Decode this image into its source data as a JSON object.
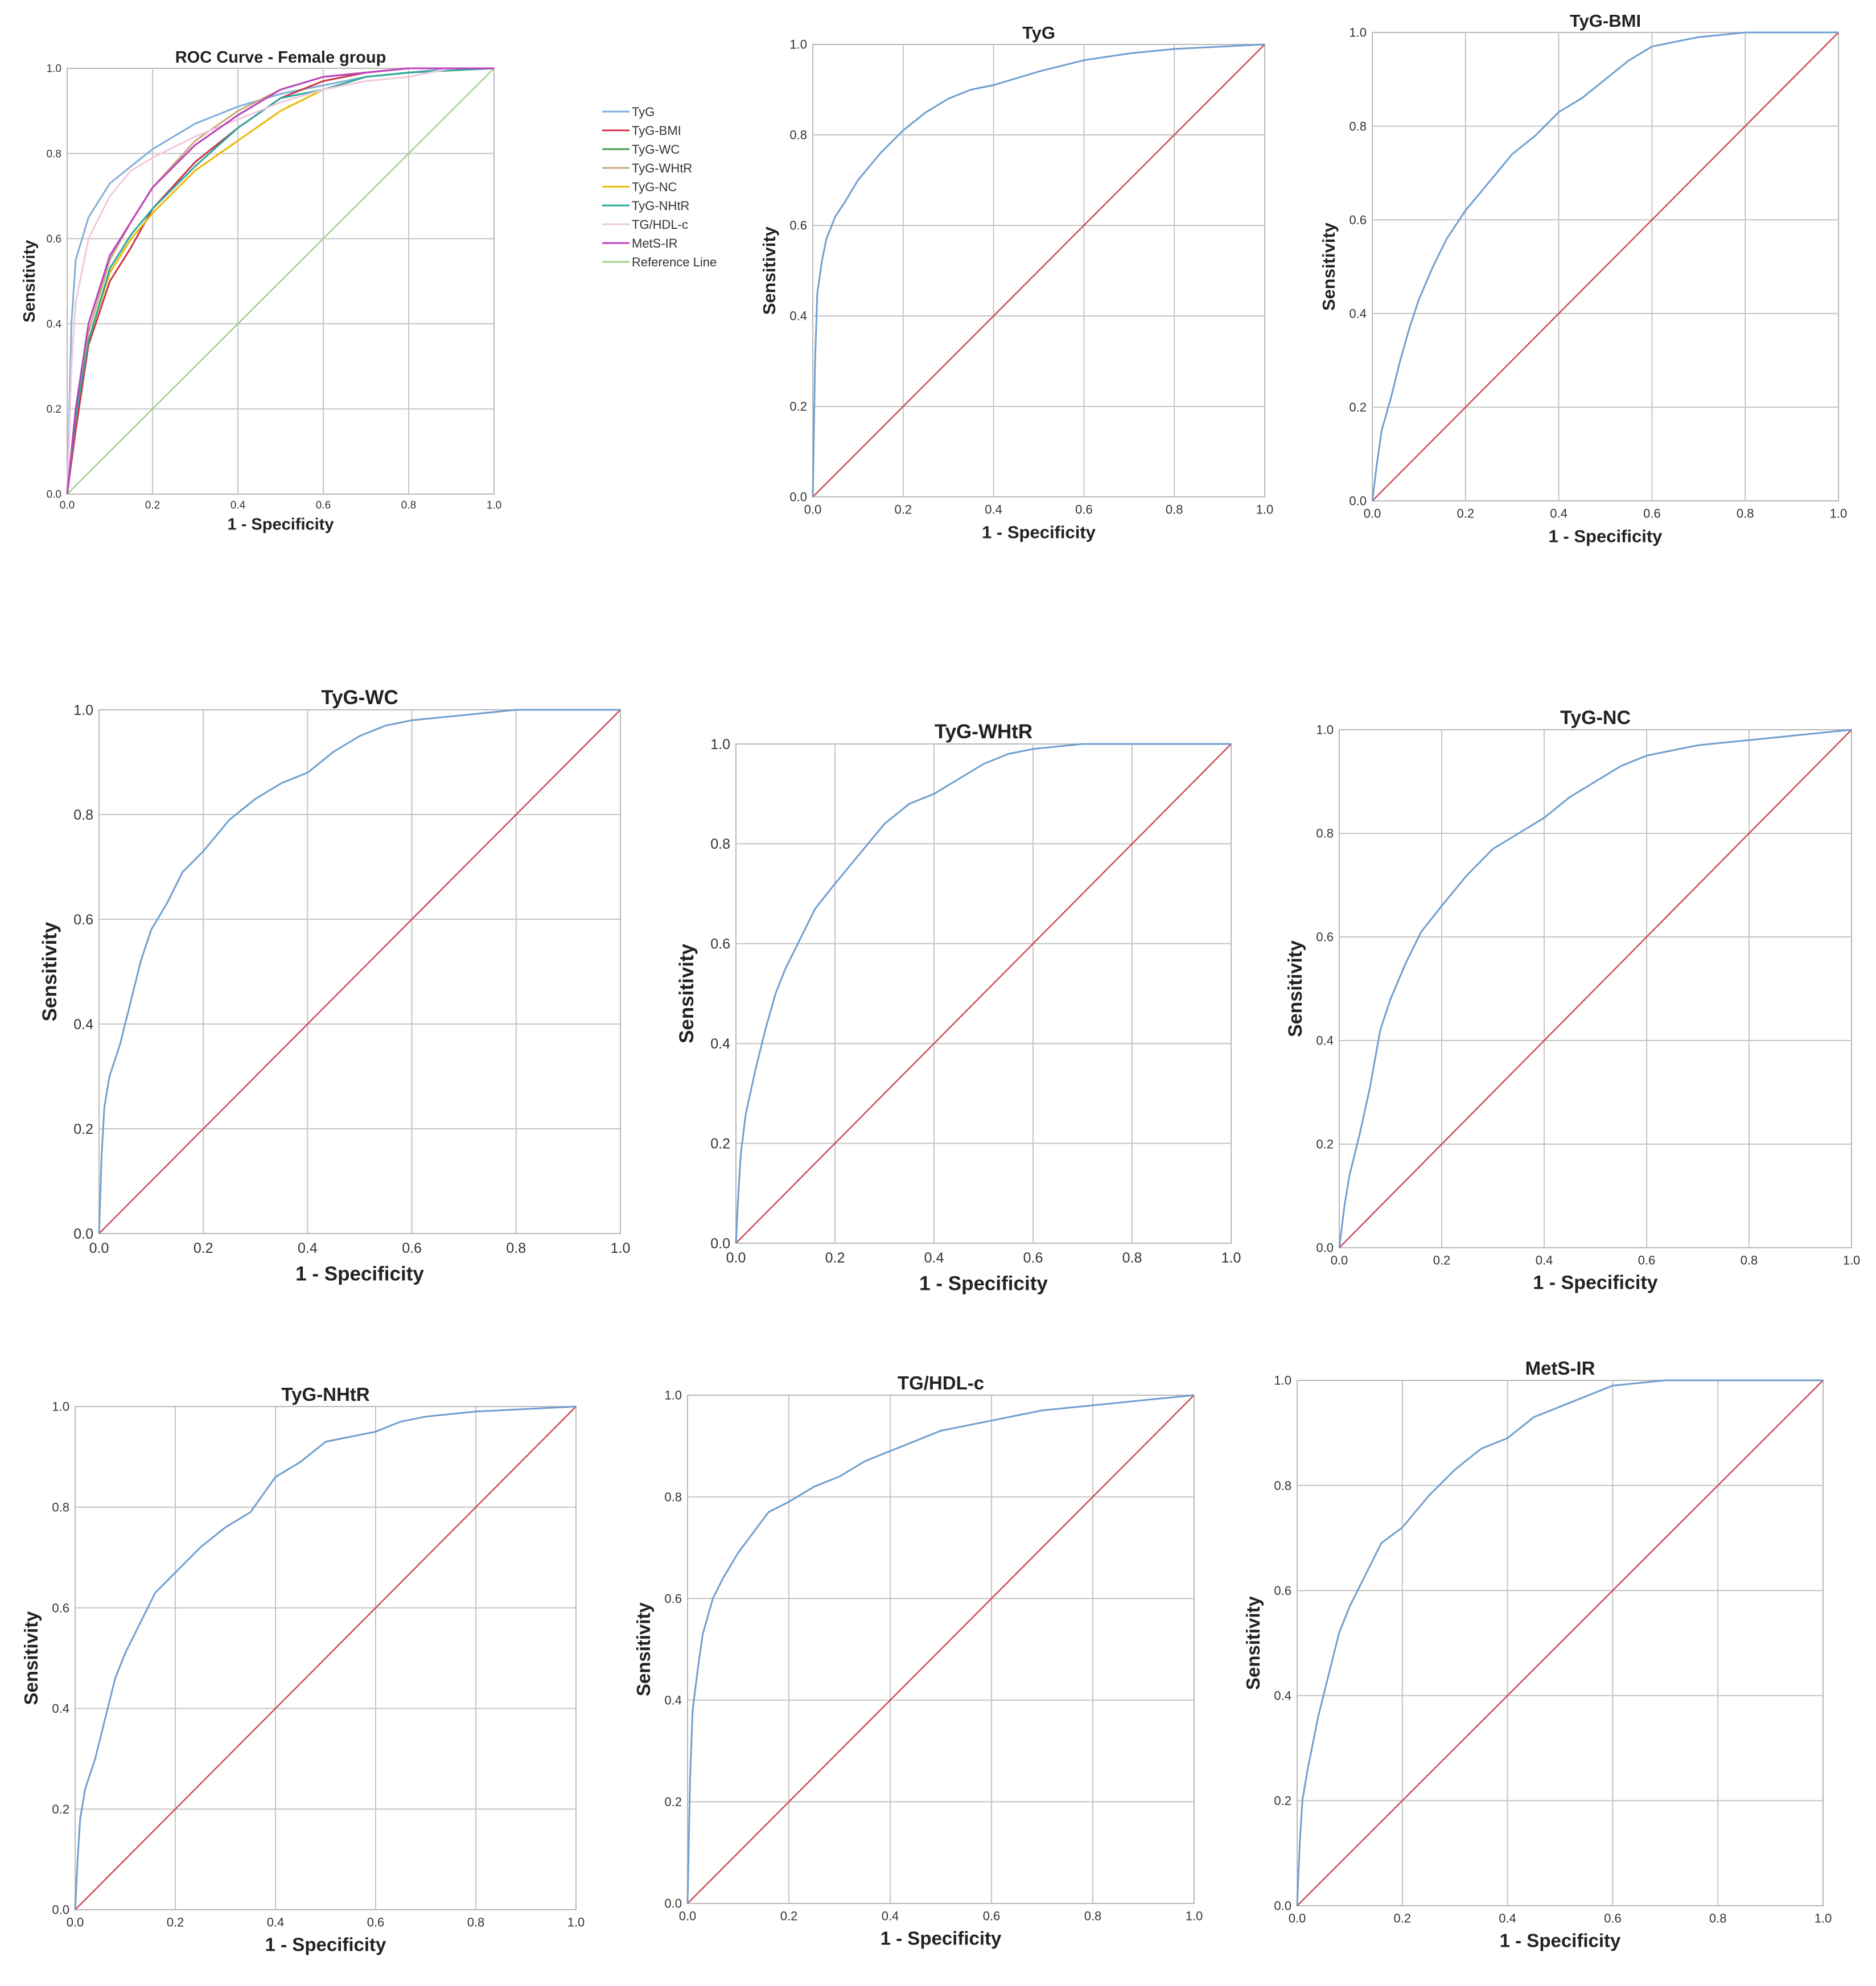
{
  "chart_data": [
    {
      "type": "line",
      "title": "ROC Curve - Female group",
      "xlabel": "1 - Specificity",
      "ylabel": "Sensitivity",
      "xlim": [
        0,
        1
      ],
      "ylim": [
        0,
        1
      ],
      "xticks": [
        "0.0",
        "0.2",
        "0.4",
        "0.6",
        "0.8",
        "1.0"
      ],
      "yticks": [
        "0.0",
        "0.2",
        "0.4",
        "0.6",
        "0.8",
        "1.0"
      ],
      "grid": true,
      "legend": "right",
      "series": [
        {
          "name": "TyG",
          "color": "#7faedb",
          "x": [
            0,
            0.01,
            0.02,
            0.05,
            0.1,
            0.15,
            0.2,
            0.3,
            0.4,
            0.5,
            0.6,
            0.7,
            0.8,
            0.9,
            1.0
          ],
          "y": [
            0,
            0.4,
            0.55,
            0.65,
            0.73,
            0.77,
            0.81,
            0.87,
            0.91,
            0.94,
            0.96,
            0.98,
            0.99,
            1.0,
            1.0
          ]
        },
        {
          "name": "TyG-BMI",
          "color": "#cc3344",
          "x": [
            0,
            0.02,
            0.05,
            0.1,
            0.15,
            0.2,
            0.3,
            0.4,
            0.5,
            0.6,
            0.7,
            0.8,
            1.0
          ],
          "y": [
            0,
            0.15,
            0.35,
            0.5,
            0.58,
            0.67,
            0.78,
            0.86,
            0.93,
            0.97,
            0.99,
            1.0,
            1.0
          ]
        },
        {
          "name": "TyG-WC",
          "color": "#4a9a48",
          "x": [
            0,
            0.02,
            0.05,
            0.1,
            0.15,
            0.2,
            0.3,
            0.4,
            0.5,
            0.6,
            0.7,
            0.8,
            1.0
          ],
          "y": [
            0,
            0.2,
            0.4,
            0.56,
            0.64,
            0.72,
            0.82,
            0.89,
            0.95,
            0.98,
            0.99,
            1.0,
            1.0
          ]
        },
        {
          "name": "TyG-WHtR",
          "color": "#c9a77a",
          "x": [
            0,
            0.02,
            0.05,
            0.1,
            0.15,
            0.2,
            0.3,
            0.4,
            0.5,
            0.6,
            0.7,
            0.8,
            1.0
          ],
          "y": [
            0,
            0.2,
            0.38,
            0.55,
            0.64,
            0.72,
            0.83,
            0.9,
            0.95,
            0.98,
            0.99,
            1.0,
            1.0
          ]
        },
        {
          "name": "TyG-NC",
          "color": "#e8b800",
          "x": [
            0,
            0.02,
            0.05,
            0.1,
            0.15,
            0.2,
            0.3,
            0.4,
            0.5,
            0.6,
            0.7,
            0.8,
            1.0
          ],
          "y": [
            0,
            0.18,
            0.36,
            0.52,
            0.6,
            0.66,
            0.76,
            0.83,
            0.9,
            0.95,
            0.98,
            0.99,
            1.0
          ]
        },
        {
          "name": "TyG-NHtR",
          "color": "#2ba7a0",
          "x": [
            0,
            0.02,
            0.05,
            0.1,
            0.15,
            0.2,
            0.3,
            0.4,
            0.5,
            0.6,
            0.7,
            0.8,
            1.0
          ],
          "y": [
            0,
            0.18,
            0.36,
            0.53,
            0.61,
            0.67,
            0.77,
            0.86,
            0.93,
            0.95,
            0.98,
            0.99,
            1.0
          ]
        },
        {
          "name": "TG/HDL-c",
          "color": "#f0c9dc",
          "x": [
            0,
            0.01,
            0.02,
            0.05,
            0.1,
            0.15,
            0.2,
            0.3,
            0.4,
            0.5,
            0.6,
            0.7,
            0.8,
            0.9,
            1.0
          ],
          "y": [
            0,
            0.3,
            0.45,
            0.6,
            0.7,
            0.76,
            0.79,
            0.84,
            0.88,
            0.92,
            0.95,
            0.97,
            0.98,
            1.0,
            1.0
          ]
        },
        {
          "name": "MetS-IR",
          "color": "#c040c0",
          "x": [
            0,
            0.02,
            0.05,
            0.1,
            0.15,
            0.2,
            0.3,
            0.4,
            0.5,
            0.6,
            0.7,
            0.8,
            1.0
          ],
          "y": [
            0,
            0.2,
            0.4,
            0.56,
            0.64,
            0.72,
            0.82,
            0.89,
            0.95,
            0.98,
            0.99,
            1.0,
            1.0
          ]
        },
        {
          "name": "Reference Line",
          "color": "#9fd38a",
          "x": [
            0,
            1
          ],
          "y": [
            0,
            1
          ]
        }
      ]
    },
    {
      "type": "line",
      "title": "TyG",
      "xlabel": "1 - Specificity",
      "ylabel": "Sensitivity",
      "xlim": [
        0,
        1
      ],
      "ylim": [
        0,
        1
      ],
      "xticks": [
        "0.0",
        "0.2",
        "0.4",
        "0.6",
        "0.8",
        "1.0"
      ],
      "yticks": [
        "0.0",
        "0.2",
        "0.4",
        "0.6",
        "0.8",
        "1.0"
      ],
      "grid": true,
      "series": [
        {
          "color": "#6f9fd0",
          "x": [
            0,
            0.005,
            0.01,
            0.02,
            0.03,
            0.05,
            0.07,
            0.1,
            0.15,
            0.2,
            0.25,
            0.3,
            0.35,
            0.4,
            0.5,
            0.6,
            0.7,
            0.8,
            0.9,
            1.0
          ],
          "y": [
            0,
            0.3,
            0.45,
            0.52,
            0.57,
            0.62,
            0.65,
            0.7,
            0.76,
            0.81,
            0.85,
            0.88,
            0.9,
            0.91,
            0.94,
            0.965,
            0.98,
            0.99,
            0.995,
            1.0
          ]
        },
        {
          "color": "#d04a5a",
          "x": [
            0,
            1
          ],
          "y": [
            0,
            1
          ]
        }
      ]
    },
    {
      "type": "line",
      "title": "TyG-BMI",
      "xlabel": "1 - Specificity",
      "ylabel": "Sensitivity",
      "xlim": [
        0,
        1
      ],
      "ylim": [
        0,
        1
      ],
      "xticks": [
        "0.0",
        "0.2",
        "0.4",
        "0.6",
        "0.8",
        "1.0"
      ],
      "yticks": [
        "0.0",
        "0.2",
        "0.4",
        "0.6",
        "0.8",
        "1.0"
      ],
      "grid": true,
      "series": [
        {
          "color": "#6f9fd0",
          "x": [
            0,
            0.01,
            0.02,
            0.04,
            0.06,
            0.08,
            0.1,
            0.13,
            0.16,
            0.2,
            0.25,
            0.3,
            0.35,
            0.4,
            0.45,
            0.5,
            0.55,
            0.6,
            0.7,
            0.8,
            0.9,
            1.0
          ],
          "y": [
            0,
            0.08,
            0.15,
            0.22,
            0.3,
            0.37,
            0.43,
            0.5,
            0.56,
            0.62,
            0.68,
            0.74,
            0.78,
            0.83,
            0.86,
            0.9,
            0.94,
            0.97,
            0.99,
            1.0,
            1.0,
            1.0
          ]
        },
        {
          "color": "#d04a5a",
          "x": [
            0,
            1
          ],
          "y": [
            0,
            1
          ]
        }
      ]
    },
    {
      "type": "line",
      "title": "TyG-WC",
      "xlabel": "1 - Specificity",
      "ylabel": "Sensitivity",
      "xlim": [
        0,
        1
      ],
      "ylim": [
        0,
        1
      ],
      "xticks": [
        "0.0",
        "0.2",
        "0.4",
        "0.6",
        "0.8",
        "1.0"
      ],
      "yticks": [
        "0.0",
        "0.2",
        "0.4",
        "0.6",
        "0.8",
        "1.0"
      ],
      "grid": true,
      "series": [
        {
          "color": "#6f9fd0",
          "x": [
            0,
            0.005,
            0.01,
            0.02,
            0.04,
            0.06,
            0.08,
            0.1,
            0.13,
            0.16,
            0.2,
            0.25,
            0.3,
            0.35,
            0.4,
            0.45,
            0.5,
            0.55,
            0.6,
            0.7,
            0.8,
            0.9,
            1.0
          ],
          "y": [
            0,
            0.15,
            0.24,
            0.3,
            0.36,
            0.44,
            0.52,
            0.58,
            0.63,
            0.69,
            0.73,
            0.79,
            0.83,
            0.86,
            0.88,
            0.92,
            0.95,
            0.97,
            0.98,
            0.99,
            1.0,
            1.0,
            1.0
          ]
        },
        {
          "color": "#d04a5a",
          "x": [
            0,
            1
          ],
          "y": [
            0,
            1
          ]
        }
      ]
    },
    {
      "type": "line",
      "title": "TyG-WHtR",
      "xlabel": "1 - Specificity",
      "ylabel": "Sensitivity",
      "xlim": [
        0,
        1
      ],
      "ylim": [
        0,
        1
      ],
      "xticks": [
        "0.0",
        "0.2",
        "0.4",
        "0.6",
        "0.8",
        "1.0"
      ],
      "yticks": [
        "0.0",
        "0.2",
        "0.4",
        "0.6",
        "0.8",
        "1.0"
      ],
      "grid": true,
      "series": [
        {
          "color": "#6f9fd0",
          "x": [
            0,
            0.005,
            0.01,
            0.02,
            0.04,
            0.06,
            0.08,
            0.1,
            0.13,
            0.16,
            0.2,
            0.25,
            0.3,
            0.35,
            0.4,
            0.45,
            0.5,
            0.55,
            0.6,
            0.7,
            0.8,
            0.9,
            1.0
          ],
          "y": [
            0,
            0.1,
            0.18,
            0.26,
            0.35,
            0.43,
            0.5,
            0.55,
            0.61,
            0.67,
            0.72,
            0.78,
            0.84,
            0.88,
            0.9,
            0.93,
            0.96,
            0.98,
            0.99,
            1.0,
            1.0,
            1.0,
            1.0
          ]
        },
        {
          "color": "#d04a5a",
          "x": [
            0,
            1
          ],
          "y": [
            0,
            1
          ]
        }
      ]
    },
    {
      "type": "line",
      "title": "TyG-NC",
      "xlabel": "1 - Specificity",
      "ylabel": "Sensitivity",
      "xlim": [
        0,
        1
      ],
      "ylim": [
        0,
        1
      ],
      "xticks": [
        "0.0",
        "0.2",
        "0.4",
        "0.6",
        "0.8",
        "1.0"
      ],
      "yticks": [
        "0.0",
        "0.2",
        "0.4",
        "0.6",
        "0.8",
        "1.0"
      ],
      "grid": true,
      "series": [
        {
          "color": "#6f9fd0",
          "x": [
            0,
            0.01,
            0.02,
            0.04,
            0.06,
            0.08,
            0.1,
            0.13,
            0.16,
            0.2,
            0.25,
            0.3,
            0.35,
            0.4,
            0.45,
            0.5,
            0.55,
            0.6,
            0.7,
            0.8,
            0.9,
            1.0
          ],
          "y": [
            0,
            0.08,
            0.14,
            0.22,
            0.31,
            0.42,
            0.48,
            0.55,
            0.61,
            0.66,
            0.72,
            0.77,
            0.8,
            0.83,
            0.87,
            0.9,
            0.93,
            0.95,
            0.97,
            0.98,
            0.99,
            1.0
          ]
        },
        {
          "color": "#d04a5a",
          "x": [
            0,
            1
          ],
          "y": [
            0,
            1
          ]
        }
      ]
    },
    {
      "type": "line",
      "title": "TyG-NHtR",
      "xlabel": "1 - Specificity",
      "ylabel": "Sensitivity",
      "xlim": [
        0,
        1
      ],
      "ylim": [
        0,
        1
      ],
      "xticks": [
        "0.0",
        "0.2",
        "0.4",
        "0.6",
        "0.8",
        "1.0"
      ],
      "yticks": [
        "0.0",
        "0.2",
        "0.4",
        "0.6",
        "0.8",
        "1.0"
      ],
      "grid": true,
      "series": [
        {
          "color": "#6f9fd0",
          "x": [
            0,
            0.005,
            0.01,
            0.02,
            0.04,
            0.06,
            0.08,
            0.1,
            0.13,
            0.16,
            0.2,
            0.25,
            0.3,
            0.35,
            0.4,
            0.45,
            0.5,
            0.55,
            0.6,
            0.65,
            0.7,
            0.8,
            0.9,
            1.0
          ],
          "y": [
            0,
            0.1,
            0.18,
            0.24,
            0.3,
            0.38,
            0.46,
            0.51,
            0.57,
            0.63,
            0.67,
            0.72,
            0.76,
            0.79,
            0.86,
            0.89,
            0.93,
            0.94,
            0.95,
            0.97,
            0.98,
            0.99,
            0.995,
            1.0
          ]
        },
        {
          "color": "#d04a5a",
          "x": [
            0,
            1
          ],
          "y": [
            0,
            1
          ]
        }
      ]
    },
    {
      "type": "line",
      "title": "TG/HDL-c",
      "xlabel": "1 - Specificity",
      "ylabel": "Sensitivity",
      "xlim": [
        0,
        1
      ],
      "ylim": [
        0,
        1
      ],
      "xticks": [
        "0.0",
        "0.2",
        "0.4",
        "0.6",
        "0.8",
        "1.0"
      ],
      "yticks": [
        "0.0",
        "0.2",
        "0.4",
        "0.6",
        "0.8",
        "1.0"
      ],
      "grid": true,
      "series": [
        {
          "color": "#6f9fd0",
          "x": [
            0,
            0.005,
            0.01,
            0.02,
            0.03,
            0.05,
            0.07,
            0.1,
            0.13,
            0.16,
            0.2,
            0.25,
            0.3,
            0.35,
            0.4,
            0.45,
            0.5,
            0.6,
            0.7,
            0.8,
            0.9,
            1.0
          ],
          "y": [
            0,
            0.25,
            0.38,
            0.46,
            0.53,
            0.6,
            0.64,
            0.69,
            0.73,
            0.77,
            0.79,
            0.82,
            0.84,
            0.87,
            0.89,
            0.91,
            0.93,
            0.95,
            0.97,
            0.98,
            0.99,
            1.0
          ]
        },
        {
          "color": "#d04a5a",
          "x": [
            0,
            1
          ],
          "y": [
            0,
            1
          ]
        }
      ]
    },
    {
      "type": "line",
      "title": "MetS-IR",
      "xlabel": "1 - Specificity",
      "ylabel": "Sensitivity",
      "xlim": [
        0,
        1
      ],
      "ylim": [
        0,
        1
      ],
      "xticks": [
        "0.0",
        "0.2",
        "0.4",
        "0.6",
        "0.8",
        "1.0"
      ],
      "yticks": [
        "0.0",
        "0.2",
        "0.4",
        "0.6",
        "0.8",
        "1.0"
      ],
      "grid": true,
      "series": [
        {
          "color": "#6f9fd0",
          "x": [
            0,
            0.005,
            0.01,
            0.02,
            0.04,
            0.06,
            0.08,
            0.1,
            0.13,
            0.16,
            0.2,
            0.25,
            0.3,
            0.35,
            0.4,
            0.45,
            0.5,
            0.55,
            0.6,
            0.7,
            0.8,
            0.9,
            1.0
          ],
          "y": [
            0,
            0.12,
            0.2,
            0.26,
            0.36,
            0.44,
            0.52,
            0.57,
            0.63,
            0.69,
            0.72,
            0.78,
            0.83,
            0.87,
            0.89,
            0.93,
            0.95,
            0.97,
            0.99,
            1.0,
            1.0,
            1.0,
            1.0
          ]
        },
        {
          "color": "#d04a5a",
          "x": [
            0,
            1
          ],
          "y": [
            0,
            1
          ]
        }
      ]
    }
  ]
}
